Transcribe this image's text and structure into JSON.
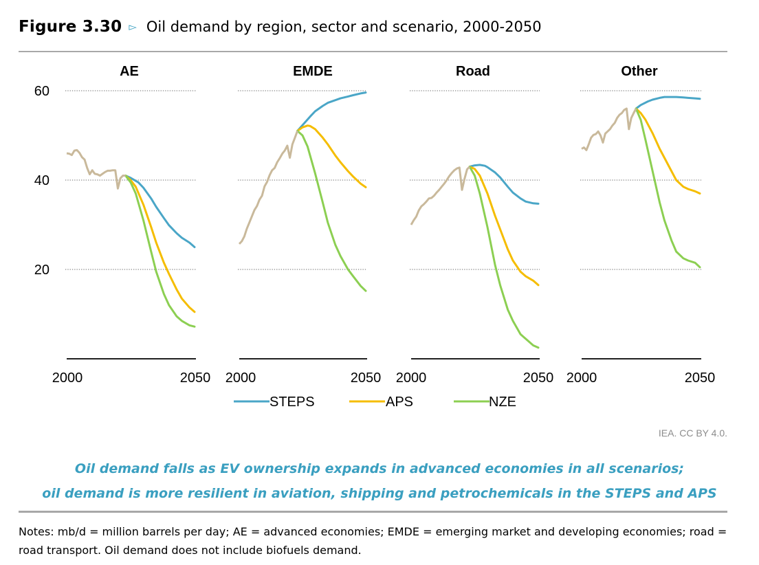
{
  "figure": {
    "number": "Figure 3.30",
    "marker": "▻",
    "title": "Oil demand by region, sector and scenario, 2000-2050",
    "credit": "IEA. CC BY 4.0.",
    "takeaway": [
      "Oil demand falls as EV ownership expands in advanced economies in all scenarios;",
      "oil demand is more resilient in aviation, shipping and petrochemicals in the STEPS and APS"
    ],
    "notes": "Notes: mb/d = million barrels per day; AE = advanced economies; EMDE = emerging market and developing economies; road = road transport. Oil demand does not include biofuels demand."
  },
  "colors": {
    "STEPS": "#4aa6c7",
    "APS": "#f5bd00",
    "NZE": "#8ccf52",
    "history": "#c9b99b",
    "grid": "#9a9a9a",
    "axis": "#000000"
  },
  "chart_data": {
    "type": "line",
    "ylim": [
      0,
      60
    ],
    "yticks": [
      20,
      40,
      60
    ],
    "xlim": [
      2000,
      2050
    ],
    "xticks": [
      "2000",
      "2050"
    ],
    "legend": {
      "position": "bottom",
      "entries": [
        "STEPS",
        "APS",
        "NZE"
      ]
    },
    "panels": [
      {
        "title": "AE",
        "history": {
          "x": [
            2000,
            2001,
            2002,
            2003,
            2004,
            2005,
            2006,
            2007,
            2008,
            2009,
            2010,
            2011,
            2012,
            2013,
            2014,
            2015,
            2016,
            2017,
            2018,
            2019,
            2020,
            2021,
            2022,
            2023
          ],
          "y": [
            46,
            45.9,
            45.6,
            46.6,
            46.7,
            46.1,
            45.1,
            44.6,
            42.7,
            41.3,
            42.2,
            41.4,
            41.3,
            41.0,
            41.4,
            41.8,
            42.1,
            42.1,
            42.2,
            42.2,
            38.1,
            40.4,
            41.0,
            41.0
          ]
        },
        "series": [
          {
            "name": "STEPS",
            "x": [
              2023,
              2025,
              2028,
              2030,
              2033,
              2035,
              2038,
              2040,
              2043,
              2045,
              2048,
              2050
            ],
            "y": [
              41,
              40.5,
              39.5,
              38.3,
              35.9,
              34.0,
              31.5,
              29.9,
              28.1,
              27.1,
              26.0,
              25.0
            ]
          },
          {
            "name": "APS",
            "x": [
              2023,
              2025,
              2027,
              2030,
              2033,
              2035,
              2038,
              2040,
              2043,
              2045,
              2048,
              2050
            ],
            "y": [
              41,
              40,
              38.5,
              34.5,
              29.5,
              26,
              21.5,
              19,
              15.5,
              13.5,
              11.5,
              10.5
            ]
          },
          {
            "name": "NZE",
            "x": [
              2023,
              2025,
              2027,
              2030,
              2033,
              2035,
              2038,
              2040,
              2043,
              2045,
              2048,
              2050
            ],
            "y": [
              41,
              39.5,
              37,
              31,
              24,
              19.5,
              14.5,
              12,
              9.5,
              8.5,
              7.5,
              7.2
            ]
          }
        ]
      },
      {
        "title": "EMDE",
        "history": {
          "x": [
            2000,
            2001,
            2002,
            2003,
            2004,
            2005,
            2006,
            2007,
            2008,
            2009,
            2010,
            2011,
            2012,
            2013,
            2014,
            2015,
            2016,
            2017,
            2018,
            2019,
            2020,
            2021,
            2022,
            2023
          ],
          "y": [
            25.7,
            26.3,
            27.4,
            29.1,
            30.5,
            31.9,
            33.3,
            34.2,
            35.6,
            36.5,
            38.6,
            39.6,
            41.1,
            42.2,
            42.7,
            44.0,
            44.9,
            45.9,
            46.6,
            47.7,
            45.0,
            48.0,
            49.5,
            51.0
          ]
        },
        "series": [
          {
            "name": "STEPS",
            "x": [
              2023,
              2025,
              2028,
              2030,
              2033,
              2035,
              2038,
              2040,
              2043,
              2045,
              2048,
              2050
            ],
            "y": [
              51,
              52.3,
              54.2,
              55.4,
              56.6,
              57.3,
              57.9,
              58.3,
              58.7,
              59.0,
              59.4,
              59.6
            ]
          },
          {
            "name": "APS",
            "x": [
              2023,
              2025,
              2027,
              2028,
              2030,
              2033,
              2035,
              2038,
              2040,
              2043,
              2045,
              2048,
              2050
            ],
            "y": [
              51,
              51.8,
              52.2,
              52.1,
              51.4,
              49.5,
              48.0,
              45.5,
              44.0,
              42.0,
              40.8,
              39.2,
              38.4
            ]
          },
          {
            "name": "NZE",
            "x": [
              2023,
              2025,
              2027,
              2030,
              2033,
              2035,
              2038,
              2040,
              2043,
              2045,
              2048,
              2050
            ],
            "y": [
              51,
              50,
              47.5,
              41.5,
              35,
              30.5,
              25.5,
              23,
              20,
              18.5,
              16.3,
              15.2
            ]
          }
        ]
      },
      {
        "title": "Road",
        "history": {
          "x": [
            2000,
            2001,
            2002,
            2003,
            2004,
            2005,
            2006,
            2007,
            2008,
            2009,
            2010,
            2011,
            2012,
            2013,
            2014,
            2015,
            2016,
            2017,
            2018,
            2019,
            2020,
            2021,
            2022,
            2023
          ],
          "y": [
            30,
            31.0,
            31.8,
            33.2,
            34.1,
            34.6,
            35.2,
            35.9,
            36.0,
            36.5,
            37.2,
            37.8,
            38.5,
            39.2,
            40.0,
            40.9,
            41.6,
            42.2,
            42.6,
            42.8,
            37.8,
            40.3,
            42.4,
            43.0
          ]
        },
        "series": [
          {
            "name": "STEPS",
            "x": [
              2023,
              2025,
              2027,
              2029,
              2030,
              2033,
              2035,
              2038,
              2040,
              2043,
              2045,
              2048,
              2050
            ],
            "y": [
              43,
              43.3,
              43.4,
              43.2,
              42.9,
              41.7,
              40.6,
              38.5,
              37.2,
              35.9,
              35.2,
              34.8,
              34.7
            ]
          },
          {
            "name": "APS",
            "x": [
              2023,
              2025,
              2027,
              2030,
              2033,
              2035,
              2038,
              2040,
              2043,
              2045,
              2048,
              2050
            ],
            "y": [
              43,
              42.5,
              41,
              37,
              32,
              29,
              24.5,
              22,
              19.5,
              18.5,
              17.5,
              16.5
            ]
          },
          {
            "name": "NZE",
            "x": [
              2023,
              2025,
              2027,
              2030,
              2033,
              2035,
              2038,
              2040,
              2043,
              2045,
              2048,
              2050
            ],
            "y": [
              43,
              41,
              37,
              29.5,
              21,
              16.5,
              11,
              8.5,
              5.5,
              4.5,
              3.0,
              2.5
            ]
          }
        ]
      },
      {
        "title": "Other",
        "history": {
          "x": [
            2000,
            2001,
            2002,
            2003,
            2004,
            2005,
            2006,
            2007,
            2008,
            2009,
            2010,
            2011,
            2012,
            2013,
            2014,
            2015,
            2016,
            2017,
            2018,
            2019,
            2020,
            2021,
            2022,
            2023
          ],
          "y": [
            47.0,
            47.3,
            46.7,
            48.0,
            49.5,
            50.1,
            50.3,
            50.9,
            50.0,
            48.4,
            50.4,
            50.9,
            51.4,
            52.2,
            52.8,
            53.9,
            54.6,
            55.0,
            55.7,
            56.0,
            51.4,
            53.9,
            55.0,
            56.0
          ]
        },
        "series": [
          {
            "name": "STEPS",
            "x": [
              2023,
              2025,
              2028,
              2030,
              2033,
              2035,
              2038,
              2040,
              2043,
              2045,
              2048,
              2050
            ],
            "y": [
              56,
              56.8,
              57.6,
              58.0,
              58.4,
              58.6,
              58.6,
              58.6,
              58.5,
              58.4,
              58.3,
              58.2
            ]
          },
          {
            "name": "APS",
            "x": [
              2023,
              2025,
              2027,
              2030,
              2033,
              2035,
              2038,
              2040,
              2043,
              2045,
              2048,
              2050
            ],
            "y": [
              56,
              55,
              53.5,
              50.5,
              47,
              45,
              42,
              40,
              38.5,
              38,
              37.5,
              37
            ]
          },
          {
            "name": "NZE",
            "x": [
              2023,
              2025,
              2027,
              2030,
              2033,
              2035,
              2038,
              2040,
              2043,
              2045,
              2048,
              2050
            ],
            "y": [
              56,
              53.5,
              49,
              42,
              35,
              31,
              26.5,
              24,
              22.5,
              22,
              21.5,
              20.5
            ]
          }
        ]
      }
    ]
  }
}
